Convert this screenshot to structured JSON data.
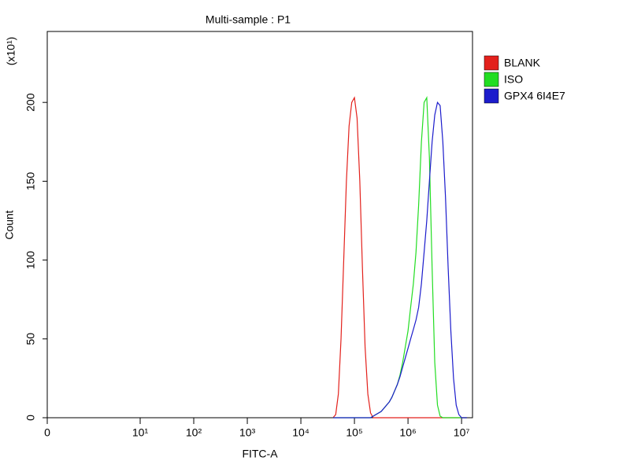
{
  "chart_data": {
    "type": "line",
    "title": "Multi-sample : P1",
    "x_label": "FITC-A",
    "y_label": "Count",
    "y_multiplier": "(x10¹)",
    "xscale": "biexponential",
    "xlim": [
      0,
      16000000
    ],
    "xticks": [
      0,
      {
        "value": 10,
        "label": "10¹"
      },
      {
        "value": 100,
        "label": "10²"
      },
      {
        "value": 1000,
        "label": "10³"
      },
      {
        "value": 10000,
        "label": "10⁴"
      },
      {
        "value": 100000,
        "label": "10⁵"
      },
      {
        "value": 1000000,
        "label": "10⁶"
      },
      {
        "value": 10000000,
        "label": "10⁷"
      }
    ],
    "ylim": [
      0,
      245
    ],
    "yticks": [
      0,
      50,
      100,
      150,
      200
    ],
    "legend": "right",
    "x": [
      39800,
      44700,
      50100,
      56200,
      63100,
      70800,
      79400,
      89100,
      100000,
      112000,
      126000,
      141000,
      158000,
      178000,
      200000,
      224000,
      251000,
      282000,
      316000,
      355000,
      398000,
      447000,
      501000,
      562000,
      631000,
      708000,
      794000,
      891000,
      1000000,
      1120000,
      1260000,
      1410000,
      1580000,
      1780000,
      2000000,
      2240000,
      2510000,
      2820000,
      3160000,
      3550000,
      3980000,
      4470000,
      5010000,
      5620000,
      6310000,
      7080000,
      7940000,
      8910000,
      10000000,
      11200000,
      12600000
    ],
    "series": [
      {
        "name": "BLANK",
        "color": "#e3211c",
        "values": [
          0,
          2,
          15,
          50,
          100,
          150,
          185,
          200,
          203,
          190,
          150,
          95,
          45,
          15,
          3,
          0,
          0,
          0,
          0,
          0,
          0,
          0,
          0,
          0,
          0,
          0,
          0,
          0,
          0,
          0,
          0,
          0,
          0,
          0,
          0,
          0,
          0,
          0,
          0,
          0,
          0,
          0,
          0,
          0,
          0,
          0,
          0,
          0,
          0,
          0,
          0
        ]
      },
      {
        "name": "ISO",
        "color": "#22dd22",
        "values": [
          0,
          0,
          0,
          0,
          0,
          0,
          0,
          0,
          0,
          0,
          0,
          0,
          0,
          0,
          0,
          1,
          2,
          3,
          4,
          6,
          8,
          10,
          13,
          17,
          21,
          27,
          35,
          45,
          55,
          70,
          85,
          105,
          135,
          175,
          200,
          203,
          165,
          95,
          35,
          8,
          1,
          0,
          0,
          0,
          0,
          0,
          0,
          0,
          0,
          0,
          0
        ]
      },
      {
        "name": "GPX4 6I4E7",
        "color": "#1c1ccc",
        "values": [
          0,
          0,
          0,
          0,
          0,
          0,
          0,
          0,
          0,
          0,
          0,
          0,
          0,
          0,
          0,
          1,
          2,
          3,
          4,
          6,
          8,
          10,
          13,
          17,
          21,
          26,
          32,
          38,
          44,
          50,
          56,
          62,
          70,
          85,
          105,
          125,
          150,
          175,
          192,
          200,
          198,
          175,
          140,
          95,
          55,
          25,
          8,
          2,
          0,
          0,
          0
        ]
      }
    ]
  }
}
